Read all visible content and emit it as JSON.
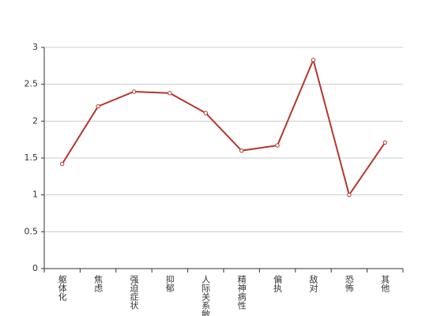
{
  "chart_data": {
    "type": "line",
    "categories": [
      "躯体化",
      "焦虑",
      "强迫症状",
      "抑郁",
      "人际关系敏感",
      "精神病性",
      "偏执",
      "敌对",
      "恐怖",
      "其他"
    ],
    "values": [
      1.42,
      2.2,
      2.4,
      2.38,
      2.11,
      1.6,
      1.67,
      2.83,
      1.0,
      1.71
    ],
    "color": "#b5362c",
    "ylim": [
      0,
      3
    ],
    "yticks": [
      0,
      0.5,
      1,
      1.5,
      2,
      2.5,
      3
    ],
    "grid": true
  }
}
